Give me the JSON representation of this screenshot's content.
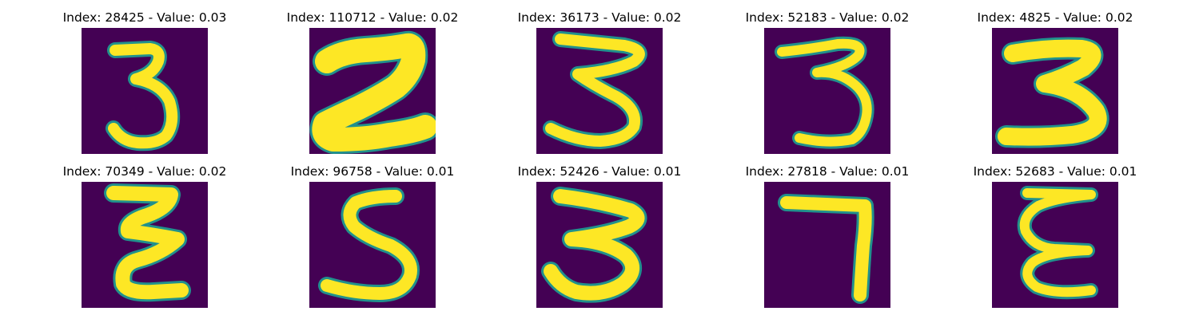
{
  "colors": {
    "background": "#440154",
    "edge": "#21918c",
    "stroke": "#fde725"
  },
  "panels": [
    {
      "index": "28425",
      "value": "0.03",
      "digit_shown": "3"
    },
    {
      "index": "110712",
      "value": "0.02",
      "digit_shown": "2"
    },
    {
      "index": "36173",
      "value": "0.02",
      "digit_shown": "3"
    },
    {
      "index": "52183",
      "value": "0.02",
      "digit_shown": "3"
    },
    {
      "index": "4825",
      "value": "0.02",
      "digit_shown": "3"
    },
    {
      "index": "70349",
      "value": "0.02",
      "digit_shown": "3"
    },
    {
      "index": "96758",
      "value": "0.01",
      "digit_shown": "5"
    },
    {
      "index": "52426",
      "value": "0.01",
      "digit_shown": "3"
    },
    {
      "index": "27818",
      "value": "0.01",
      "digit_shown": "7"
    },
    {
      "index": "52683",
      "value": "0.01",
      "digit_shown": "3"
    }
  ]
}
